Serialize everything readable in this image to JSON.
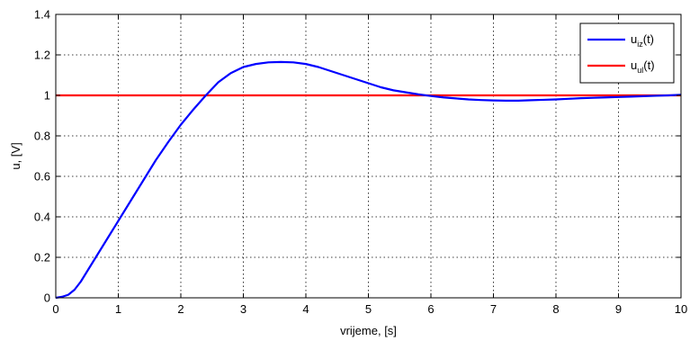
{
  "chart_data": {
    "type": "line",
    "xlabel": "vrijeme, [s]",
    "ylabel": "u, [V]",
    "xlim": [
      0,
      10
    ],
    "ylim": [
      0,
      1.4
    ],
    "x_ticks": [
      0,
      1,
      2,
      3,
      4,
      5,
      6,
      7,
      8,
      9,
      10
    ],
    "y_ticks": [
      0,
      0.2,
      0.4,
      0.6,
      0.8,
      1,
      1.2,
      1.4
    ],
    "x_tick_labels": [
      "0",
      "1",
      "2",
      "3",
      "4",
      "5",
      "6",
      "7",
      "8",
      "9",
      "10"
    ],
    "y_tick_labels": [
      "0",
      "0.2",
      "0.4",
      "0.6",
      "0.8",
      "1",
      "1.2",
      "1.4"
    ],
    "grid": true,
    "legend_position": "top-right",
    "series": [
      {
        "name_main": "u",
        "name_sub": "iz",
        "name_tail": "(t)",
        "color": "#0000ff",
        "x": [
          0,
          0.1,
          0.2,
          0.3,
          0.4,
          0.5,
          0.6,
          0.7,
          0.8,
          0.9,
          1.0,
          1.2,
          1.4,
          1.6,
          1.8,
          2.0,
          2.2,
          2.4,
          2.6,
          2.8,
          3.0,
          3.2,
          3.4,
          3.6,
          3.8,
          4.0,
          4.2,
          4.4,
          4.6,
          4.8,
          5.0,
          5.2,
          5.4,
          5.6,
          5.8,
          6.0,
          6.2,
          6.4,
          6.6,
          6.8,
          7.0,
          7.2,
          7.4,
          7.6,
          7.8,
          8.0,
          8.2,
          8.4,
          8.6,
          8.8,
          9.0,
          9.2,
          9.4,
          9.6,
          9.8,
          10.0
        ],
        "y": [
          0.0,
          0.005,
          0.015,
          0.04,
          0.08,
          0.13,
          0.18,
          0.23,
          0.28,
          0.33,
          0.38,
          0.48,
          0.58,
          0.68,
          0.77,
          0.855,
          0.93,
          1.0,
          1.065,
          1.11,
          1.14,
          1.155,
          1.163,
          1.165,
          1.163,
          1.155,
          1.14,
          1.12,
          1.1,
          1.08,
          1.06,
          1.04,
          1.025,
          1.015,
          1.005,
          0.997,
          0.99,
          0.985,
          0.98,
          0.977,
          0.975,
          0.974,
          0.974,
          0.976,
          0.978,
          0.98,
          0.983,
          0.986,
          0.988,
          0.99,
          0.992,
          0.994,
          0.996,
          0.998,
          1.0,
          1.003
        ]
      },
      {
        "name_main": "u",
        "name_sub": "ul",
        "name_tail": "(t)",
        "color": "#ff0000",
        "x": [
          0,
          10
        ],
        "y": [
          1,
          1
        ]
      }
    ]
  }
}
